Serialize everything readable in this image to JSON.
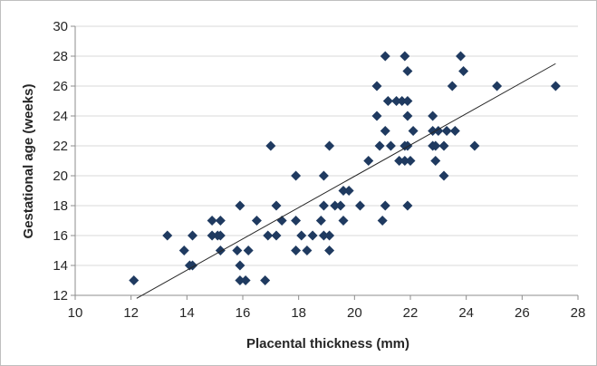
{
  "chart_data": {
    "type": "scatter",
    "title": "",
    "xlabel": "Placental thickness (mm)",
    "ylabel": "Gestational age (weeks)",
    "xlim": [
      10,
      28
    ],
    "ylim": [
      12,
      30
    ],
    "xticks": [
      "10",
      "12",
      "14",
      "16",
      "18",
      "20",
      "22",
      "24",
      "26",
      "28"
    ],
    "yticks": [
      "12",
      "14",
      "16",
      "18",
      "20",
      "22",
      "24",
      "26",
      "28",
      "30"
    ],
    "grid": "horizontal",
    "legend": "none",
    "marker": "diamond",
    "marker_color": "#1f3a60",
    "trendline": {
      "type": "linear",
      "color": "#262626",
      "x": [
        12.2,
        27.2
      ],
      "y": [
        11.8,
        27.5
      ]
    },
    "series": [
      {
        "points": [
          [
            12.1,
            13
          ],
          [
            13.3,
            16
          ],
          [
            13.9,
            15
          ],
          [
            14.1,
            14
          ],
          [
            14.2,
            16
          ],
          [
            14.2,
            14
          ],
          [
            14.9,
            17
          ],
          [
            14.9,
            16
          ],
          [
            15.1,
            16
          ],
          [
            15.2,
            17
          ],
          [
            15.2,
            16
          ],
          [
            15.2,
            15
          ],
          [
            15.8,
            15
          ],
          [
            15.9,
            18
          ],
          [
            15.9,
            14
          ],
          [
            15.9,
            13
          ],
          [
            16.1,
            13
          ],
          [
            16.2,
            15
          ],
          [
            16.5,
            17
          ],
          [
            16.8,
            13
          ],
          [
            16.9,
            16
          ],
          [
            17.0,
            22
          ],
          [
            17.2,
            18
          ],
          [
            17.2,
            16
          ],
          [
            17.4,
            17
          ],
          [
            17.9,
            20
          ],
          [
            17.9,
            17
          ],
          [
            17.9,
            15
          ],
          [
            18.1,
            16
          ],
          [
            18.3,
            15
          ],
          [
            18.5,
            16
          ],
          [
            18.8,
            17
          ],
          [
            18.9,
            20
          ],
          [
            18.9,
            18
          ],
          [
            18.9,
            16
          ],
          [
            19.1,
            22
          ],
          [
            19.1,
            16
          ],
          [
            19.1,
            15
          ],
          [
            19.3,
            18
          ],
          [
            19.5,
            18
          ],
          [
            19.6,
            19
          ],
          [
            19.6,
            17
          ],
          [
            19.8,
            19
          ],
          [
            20.2,
            18
          ],
          [
            20.5,
            21
          ],
          [
            20.8,
            26
          ],
          [
            20.8,
            24
          ],
          [
            20.9,
            22
          ],
          [
            21.0,
            17
          ],
          [
            21.1,
            28
          ],
          [
            21.1,
            23
          ],
          [
            21.1,
            18
          ],
          [
            21.2,
            25
          ],
          [
            21.3,
            22
          ],
          [
            21.5,
            25
          ],
          [
            21.6,
            21
          ],
          [
            21.7,
            25
          ],
          [
            21.8,
            28
          ],
          [
            21.8,
            22
          ],
          [
            21.8,
            21
          ],
          [
            21.9,
            27
          ],
          [
            21.9,
            25
          ],
          [
            21.9,
            24
          ],
          [
            21.9,
            22
          ],
          [
            21.9,
            18
          ],
          [
            22.0,
            21
          ],
          [
            22.1,
            23
          ],
          [
            22.8,
            24
          ],
          [
            22.8,
            23
          ],
          [
            22.8,
            22
          ],
          [
            22.9,
            22
          ],
          [
            22.9,
            21
          ],
          [
            23.0,
            23
          ],
          [
            23.2,
            22
          ],
          [
            23.2,
            20
          ],
          [
            23.3,
            23
          ],
          [
            23.5,
            26
          ],
          [
            23.6,
            23
          ],
          [
            23.8,
            28
          ],
          [
            23.9,
            27
          ],
          [
            24.3,
            22
          ],
          [
            25.1,
            26
          ],
          [
            27.2,
            26
          ]
        ]
      }
    ]
  }
}
